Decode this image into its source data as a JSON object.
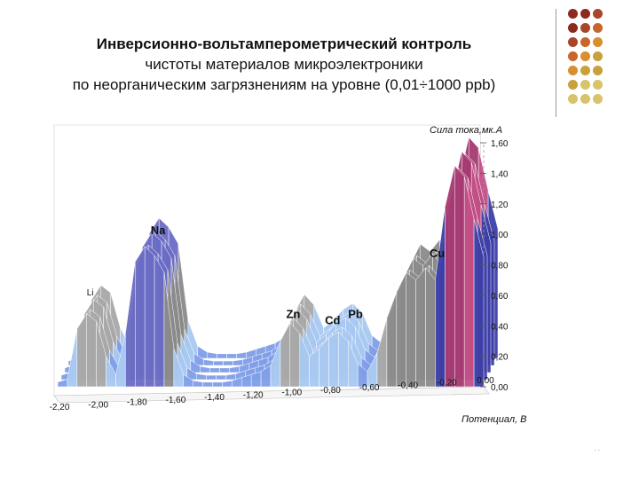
{
  "slide": {
    "title_line1": "Инверсионно-вольтамперометрический контроль",
    "title_line2": "чистоты материалов микроэлектроники",
    "title_line3": "по неорганическим загрязнениям на уровне (0,01÷1000 ppb)",
    "corner_mark": ". .",
    "palette": [
      "#8b2a1f",
      "#a8452a",
      "#c8662c",
      "#d88f2e",
      "#c9a13a",
      "#d8c26a"
    ]
  },
  "chart_data": {
    "type": "area",
    "style": "3d-surface",
    "xlabel": "Потенциал, В",
    "ylabel": "Сила тока,мк.А",
    "x_ticks": [
      "-2,20",
      "-2,00",
      "-1,80",
      "-1,60",
      "-1,40",
      "-1,20",
      "-1,00",
      "-0,80",
      "-0,60",
      "-0,40",
      "-0,20",
      "0,00"
    ],
    "y_ticks": [
      "0,00",
      "0,20",
      "0,40",
      "0,60",
      "0,80",
      "1,00",
      "1,20",
      "1,40",
      "1,60"
    ],
    "xlim": [
      -2.2,
      0.0
    ],
    "ylim": [
      0,
      1.6
    ],
    "annotations": [
      {
        "text": "Li",
        "x": -2.05,
        "y": 0.6
      },
      {
        "text": "Na",
        "x": -1.72,
        "y": 1.0
      },
      {
        "text": "Zn",
        "x": -1.02,
        "y": 0.45
      },
      {
        "text": "Cd",
        "x": -0.82,
        "y": 0.41
      },
      {
        "text": "Pb",
        "x": -0.7,
        "y": 0.45
      },
      {
        "text": "Cu",
        "x": -0.28,
        "y": 0.85
      }
    ],
    "series": [
      {
        "x": [
          -2.2,
          -2.15,
          -2.1,
          -2.05,
          -2.0,
          -1.95,
          -1.9,
          -1.85,
          -1.8,
          -1.75,
          -1.7,
          -1.65,
          -1.6,
          -1.55,
          -1.5,
          -1.45,
          -1.4,
          -1.35,
          -1.3,
          -1.25,
          -1.2,
          -1.15,
          -1.1,
          -1.05,
          -1.0,
          -0.95,
          -0.9,
          -0.85,
          -0.8,
          -0.75,
          -0.7,
          -0.65,
          -0.6,
          -0.55,
          -0.5,
          -0.45,
          -0.4,
          -0.35,
          -0.3,
          -0.25,
          -0.2,
          -0.15,
          -0.1,
          -0.05,
          0.0
        ],
        "y": [
          0.03,
          0.05,
          0.38,
          0.48,
          0.43,
          0.2,
          0.08,
          0.35,
          0.82,
          0.92,
          0.86,
          0.75,
          0.25,
          0.08,
          0.04,
          0.03,
          0.03,
          0.03,
          0.04,
          0.06,
          0.08,
          0.1,
          0.14,
          0.3,
          0.42,
          0.35,
          0.2,
          0.25,
          0.32,
          0.36,
          0.3,
          0.15,
          0.1,
          0.22,
          0.45,
          0.62,
          0.75,
          0.7,
          0.78,
          0.7,
          1.18,
          1.45,
          1.38,
          1.1,
          0.85
        ]
      }
    ]
  }
}
